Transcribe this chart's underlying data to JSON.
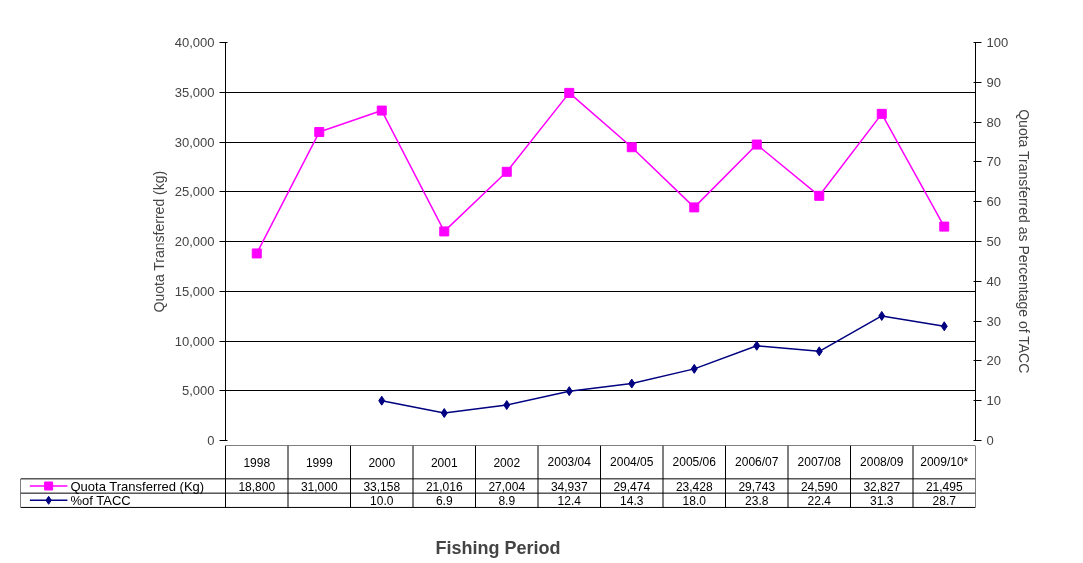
{
  "chart_data": {
    "type": "line",
    "xlabel": "Fishing Period",
    "ylabel": "Quota Transferred (kg)",
    "y2label": "Quota Transferred as Percentage of TACC",
    "categories": [
      "1998",
      "1999",
      "2000",
      "2001",
      "2002",
      "2003/04",
      "2004/05",
      "2005/06",
      "2006/07",
      "2007/08",
      "2008/09",
      "2009/10*"
    ],
    "ylim": [
      0,
      40000
    ],
    "yticks": [
      {
        "value": 0,
        "label": "0"
      },
      {
        "value": 5000,
        "label": "5,000"
      },
      {
        "value": 10000,
        "label": "10,000"
      },
      {
        "value": 15000,
        "label": "15,000"
      },
      {
        "value": 20000,
        "label": "20,000"
      },
      {
        "value": 25000,
        "label": "25,000"
      },
      {
        "value": 30000,
        "label": "30,000"
      },
      {
        "value": 35000,
        "label": "35,000"
      },
      {
        "value": 40000,
        "label": "40,000"
      }
    ],
    "legend": "bottom left",
    "y2lim": [
      0,
      100
    ],
    "y2ticks": [
      0,
      10,
      20,
      30,
      40,
      50,
      60,
      70,
      80,
      90,
      100
    ],
    "grid": "y",
    "series": [
      {
        "name": "Quota Transferred (Kg)",
        "color": "#ff00ff",
        "marker": "square",
        "values": [
          18800,
          31000,
          33158,
          21016,
          27004,
          34937,
          29474,
          23428,
          29743,
          24590,
          32827,
          21495
        ],
        "value_labels": [
          "18,800",
          "31,000",
          "33,158",
          "21,016",
          "27,004",
          "34,937",
          "29,474",
          "23,428",
          "29,743",
          "24,590",
          "32,827",
          "21,495"
        ]
      },
      {
        "name": "%of TACC",
        "color": "#000080",
        "marker": "diamond",
        "axis": "y2",
        "values": [
          null,
          null,
          10.0,
          6.9,
          8.9,
          12.4,
          14.3,
          18.0,
          23.8,
          22.4,
          31.3,
          28.7
        ],
        "value_labels": [
          null,
          null,
          "10.0",
          "6.9",
          "8.9",
          "12.4",
          "14.3",
          "18.0",
          "23.8",
          "22.4",
          "31.3",
          "28.7"
        ]
      }
    ]
  }
}
